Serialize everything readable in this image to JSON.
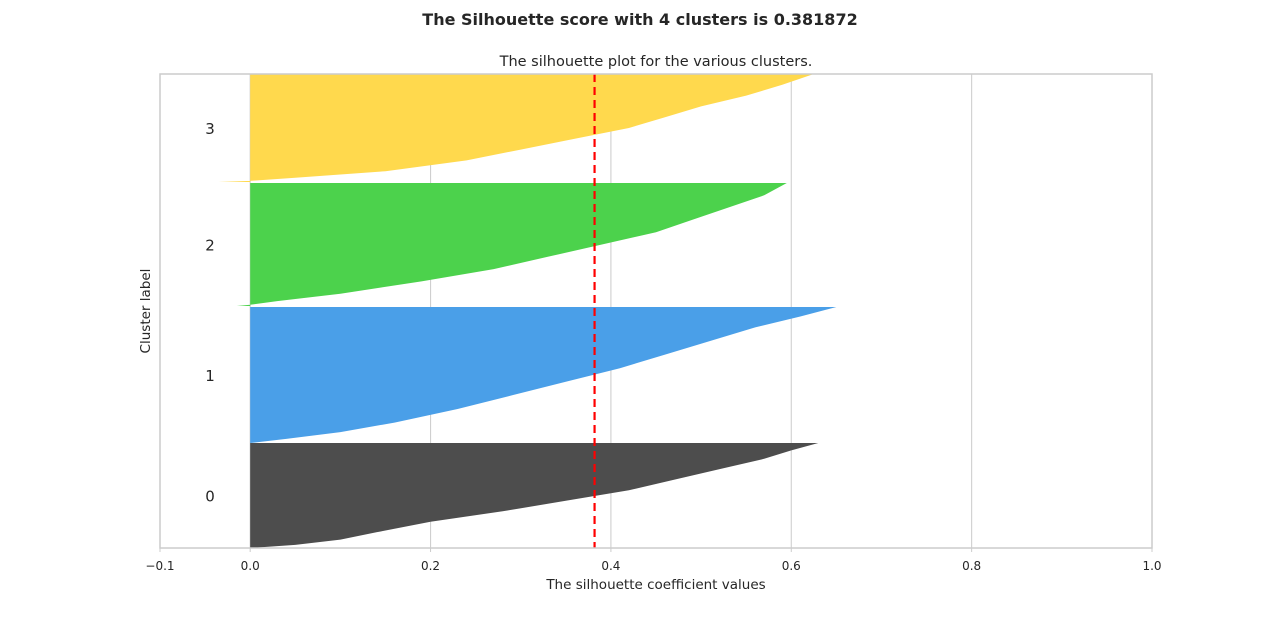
{
  "figure": {
    "suptitle": "The Silhouette score with 4 clusters is 0.381872"
  },
  "chart_data": {
    "type": "area",
    "title": "The silhouette plot for the various clusters.",
    "xlabel": "The silhouette coefficient values",
    "ylabel": "Cluster label",
    "xlim": [
      -0.1,
      1.0
    ],
    "xticks": [
      -0.1,
      0.0,
      0.2,
      0.4,
      0.6,
      0.8,
      1.0
    ],
    "xtick_labels": [
      "−0.1",
      "0.0",
      "0.2",
      "0.4",
      "0.6",
      "0.8",
      "1.0"
    ],
    "grid": true,
    "average_silhouette_score": 0.381872,
    "average_line_color": "#ff0000",
    "clusters": [
      {
        "label": "0",
        "color": "#4d4d4d",
        "min_value": -0.001,
        "max_value": 0.63,
        "profile": [
          [
            0.0,
            0.0
          ],
          [
            0.03,
            0.05
          ],
          [
            0.08,
            0.1
          ],
          [
            0.15,
            0.14
          ],
          [
            0.25,
            0.2
          ],
          [
            0.35,
            0.28
          ],
          [
            0.45,
            0.35
          ],
          [
            0.55,
            0.42
          ],
          [
            0.65,
            0.47
          ],
          [
            0.75,
            0.52
          ],
          [
            0.85,
            0.57
          ],
          [
            0.93,
            0.6
          ],
          [
            1.0,
            0.63
          ]
        ]
      },
      {
        "label": "1",
        "color": "#4a9fe8",
        "min_value": 0.0,
        "max_value": 0.65,
        "profile": [
          [
            0.0,
            0.0
          ],
          [
            0.03,
            0.04
          ],
          [
            0.08,
            0.1
          ],
          [
            0.15,
            0.16
          ],
          [
            0.25,
            0.23
          ],
          [
            0.35,
            0.29
          ],
          [
            0.45,
            0.35
          ],
          [
            0.55,
            0.41
          ],
          [
            0.65,
            0.46
          ],
          [
            0.75,
            0.51
          ],
          [
            0.85,
            0.56
          ],
          [
            0.93,
            0.61
          ],
          [
            1.0,
            0.65
          ]
        ]
      },
      {
        "label": "2",
        "color": "#4cd24c",
        "min_value": -0.015,
        "max_value": 0.595,
        "profile": [
          [
            0.0,
            -0.015
          ],
          [
            0.01,
            0.0
          ],
          [
            0.04,
            0.03
          ],
          [
            0.1,
            0.1
          ],
          [
            0.2,
            0.19
          ],
          [
            0.3,
            0.27
          ],
          [
            0.4,
            0.33
          ],
          [
            0.5,
            0.39
          ],
          [
            0.6,
            0.45
          ],
          [
            0.7,
            0.49
          ],
          [
            0.8,
            0.53
          ],
          [
            0.9,
            0.57
          ],
          [
            1.0,
            0.595
          ]
        ]
      },
      {
        "label": "3",
        "color": "#ffd94d",
        "min_value": -0.035,
        "max_value": 0.625,
        "profile": [
          [
            0.0,
            -0.035
          ],
          [
            0.01,
            0.0
          ],
          [
            0.04,
            0.05
          ],
          [
            0.1,
            0.15
          ],
          [
            0.2,
            0.24
          ],
          [
            0.3,
            0.3
          ],
          [
            0.4,
            0.36
          ],
          [
            0.5,
            0.42
          ],
          [
            0.6,
            0.46
          ],
          [
            0.7,
            0.5
          ],
          [
            0.8,
            0.55
          ],
          [
            0.9,
            0.59
          ],
          [
            1.0,
            0.625
          ]
        ]
      }
    ]
  }
}
